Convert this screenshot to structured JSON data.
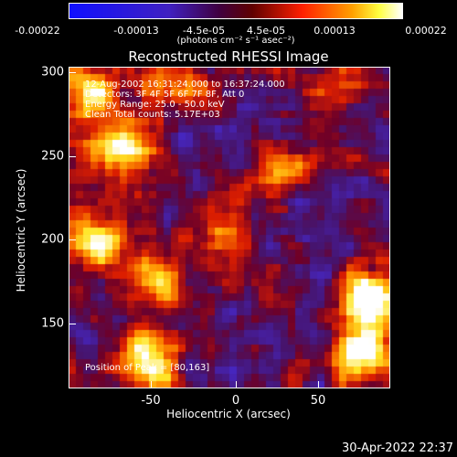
{
  "colorbar": {
    "ticks": [
      "-0.00022",
      "-0.00013",
      "-4.5e-05",
      "4.5e-05",
      "0.00013",
      "0.00022"
    ],
    "unit": "(photons cm⁻² s⁻¹ asec⁻²)"
  },
  "chart_data": {
    "type": "heatmap",
    "title": "Reconstructed RHESSI Image",
    "xlabel": "Heliocentric X (arcsec)",
    "ylabel": "Heliocentric Y (arcsec)",
    "xlim": [
      -91,
      91
    ],
    "ylim": [
      110,
      302
    ],
    "xticks": [
      "-50",
      "0",
      "50"
    ],
    "yticks": [
      "150",
      "200",
      "250",
      "300"
    ],
    "colorbar_range": [
      -0.00022,
      0.00022
    ],
    "colormap": "rhessi-blue-purple-red-yellow-white",
    "info_lines": [
      "12-Aug-2002 16:31:24.000 to 16:37:24.000",
      "Detectors: 3F 4F 5F 6F 7F 8F, Att 0",
      "Energy Range: 25.0 - 50.0 keV",
      "Clean    Total counts: 5.17E+03"
    ],
    "peak_label": "Position of Peak = [80,163]",
    "hot_spots": [
      {
        "x": -82,
        "y": 286,
        "value": 0.00016
      },
      {
        "x": -60,
        "y": 255,
        "value": 0.00018
      },
      {
        "x": -30,
        "y": 292,
        "value": 0.00012
      },
      {
        "x": -5,
        "y": 200,
        "value": 0.0001
      },
      {
        "x": -75,
        "y": 200,
        "value": 0.00014
      },
      {
        "x": -40,
        "y": 175,
        "value": 0.00013
      },
      {
        "x": 80,
        "y": 163,
        "value": 0.00022
      },
      {
        "x": 75,
        "y": 130,
        "value": 0.00019
      },
      {
        "x": -45,
        "y": 125,
        "value": 0.00016
      },
      {
        "x": 30,
        "y": 240,
        "value": 8e-05
      },
      {
        "x": 60,
        "y": 290,
        "value": 6e-05
      }
    ]
  },
  "footer": {
    "timestamp": "30-Apr-2022 22:37"
  },
  "colors": {
    "background": "#000000",
    "text": "#ffffff",
    "cold": "#1a1aff",
    "mid": "#5a1a8c",
    "warm": "#cc2200",
    "hot": "#ffe000",
    "peak": "#ffffff"
  }
}
